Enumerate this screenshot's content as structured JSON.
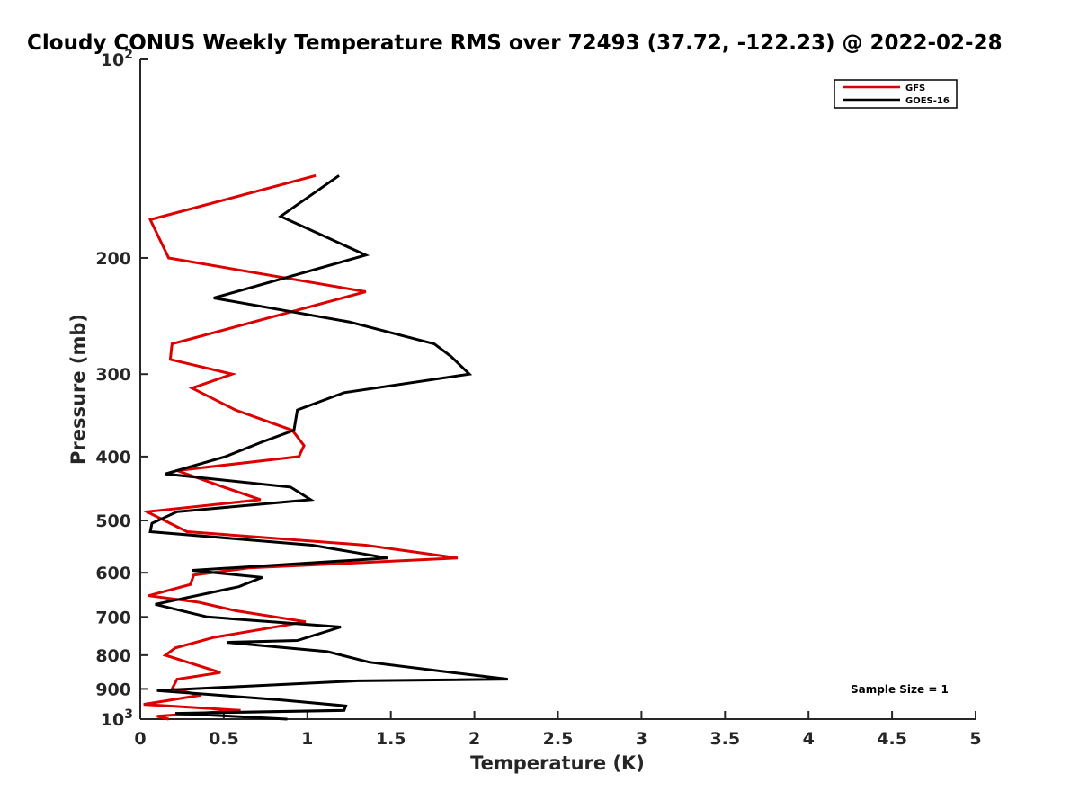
{
  "chart_data": {
    "type": "line",
    "title": "Cloudy CONUS Weekly Temperature RMS over 72493 (37.72, -122.23) @ 2022-02-28",
    "xlabel": "Temperature (K)",
    "ylabel": "Pressure (mb)",
    "xlim": [
      0,
      5
    ],
    "ylim": [
      100,
      1000
    ],
    "y_scale": "log",
    "y_reversed": true,
    "grid": false,
    "legend_position": "top-right",
    "x_ticks": [
      0,
      0.5,
      1,
      1.5,
      2,
      2.5,
      3,
      3.5,
      4,
      4.5,
      5
    ],
    "x_tick_labels": [
      "0",
      "0.5",
      "1",
      "1.5",
      "2",
      "2.5",
      "3",
      "3.5",
      "4",
      "4.5",
      "5"
    ],
    "y_ticks": [
      200,
      300,
      400,
      500,
      600,
      700,
      800,
      900
    ],
    "y_tick_labels": [
      "200",
      "300",
      "400",
      "500",
      "600",
      "700",
      "800",
      "900"
    ],
    "y_tick_top": {
      "base": "10",
      "exp": "2",
      "value": 100
    },
    "y_tick_bottom": {
      "base": "10",
      "exp": "3",
      "value": 1000
    },
    "series": [
      {
        "name": "GFS",
        "color": "#dd0000",
        "points": [
          [
            1.05,
            150
          ],
          [
            0.06,
            175
          ],
          [
            0.17,
            200
          ],
          [
            1.35,
            225
          ],
          [
            0.19,
            270
          ],
          [
            0.18,
            285
          ],
          [
            0.55,
            300
          ],
          [
            0.31,
            315
          ],
          [
            0.57,
            340
          ],
          [
            0.91,
            365
          ],
          [
            0.98,
            385
          ],
          [
            0.95,
            400
          ],
          [
            0.22,
            420
          ],
          [
            0.5,
            445
          ],
          [
            0.72,
            465
          ],
          [
            0.04,
            485
          ],
          [
            0.28,
            520
          ],
          [
            1.35,
            545
          ],
          [
            1.9,
            570
          ],
          [
            0.65,
            590
          ],
          [
            0.32,
            605
          ],
          [
            0.3,
            625
          ],
          [
            0.05,
            650
          ],
          [
            0.35,
            665
          ],
          [
            0.57,
            685
          ],
          [
            0.99,
            712
          ],
          [
            0.44,
            752
          ],
          [
            0.21,
            780
          ],
          [
            0.15,
            800
          ],
          [
            0.48,
            850
          ],
          [
            0.22,
            870
          ],
          [
            0.19,
            900
          ],
          [
            0.36,
            920
          ],
          [
            0.02,
            950
          ],
          [
            0.6,
            970
          ],
          [
            0.1,
            990
          ],
          [
            0.17,
            1000
          ]
        ]
      },
      {
        "name": "GOES-16",
        "color": "#000000",
        "points": [
          [
            1.19,
            150
          ],
          [
            0.84,
            173
          ],
          [
            1.35,
            198
          ],
          [
            0.44,
            230
          ],
          [
            1.25,
            250
          ],
          [
            1.76,
            270
          ],
          [
            1.86,
            282
          ],
          [
            1.97,
            300
          ],
          [
            1.22,
            320
          ],
          [
            0.94,
            340
          ],
          [
            0.92,
            365
          ],
          [
            0.73,
            380
          ],
          [
            0.51,
            400
          ],
          [
            0.15,
            425
          ],
          [
            0.9,
            445
          ],
          [
            1.02,
            465
          ],
          [
            0.22,
            485
          ],
          [
            0.07,
            505
          ],
          [
            0.06,
            520
          ],
          [
            1.03,
            545
          ],
          [
            1.48,
            570
          ],
          [
            0.31,
            595
          ],
          [
            0.73,
            610
          ],
          [
            0.59,
            630
          ],
          [
            0.09,
            670
          ],
          [
            0.4,
            700
          ],
          [
            1.2,
            725
          ],
          [
            0.94,
            760
          ],
          [
            0.52,
            765
          ],
          [
            1.12,
            790
          ],
          [
            1.37,
            820
          ],
          [
            1.87,
            850
          ],
          [
            2.2,
            870
          ],
          [
            1.3,
            875
          ],
          [
            0.1,
            905
          ],
          [
            0.84,
            935
          ],
          [
            1.23,
            955
          ],
          [
            1.22,
            970
          ],
          [
            0.21,
            980
          ],
          [
            0.88,
            1000
          ]
        ]
      }
    ],
    "annotation": "Sample Size = 1"
  }
}
